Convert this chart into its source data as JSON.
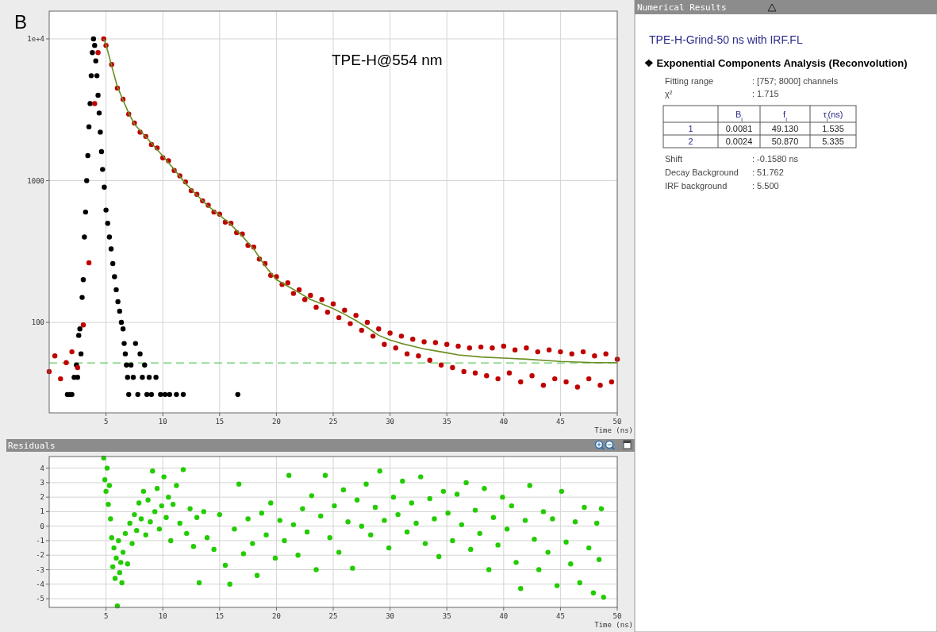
{
  "chart_data": [
    {
      "type": "scatter",
      "annotations": [
        "B",
        "TPE-H@554 nm"
      ],
      "xlabel": "Time (ns)",
      "xlim": [
        0,
        50
      ],
      "xticks": [
        5,
        10,
        15,
        20,
        25,
        30,
        35,
        40,
        45,
        50
      ],
      "ylim": [
        23,
        15700
      ],
      "yticks": [
        100,
        1000,
        {
          "value": 10000,
          "label": "1e+4"
        }
      ],
      "log": true,
      "grid": true,
      "marker": "circle",
      "ref_lines": [
        {
          "axis": "y",
          "value": 51.762,
          "color": "#66cc66",
          "line_style": "dashed"
        }
      ],
      "series": [
        {
          "type": "scatter",
          "color": "#000000",
          "x": [
            1.6,
            1.8,
            2.0,
            2.2,
            2.4,
            2.5,
            2.6,
            2.7,
            2.8,
            2.9,
            3.0,
            3.1,
            3.2,
            3.3,
            3.4,
            3.5,
            3.6,
            3.7,
            3.8,
            3.9,
            4.0,
            4.1,
            4.2,
            4.3,
            4.4,
            4.5,
            4.6,
            4.7,
            4.85,
            5.0,
            5.15,
            5.3,
            5.45,
            5.6,
            5.75,
            5.9,
            6.05,
            6.2,
            6.35,
            6.5,
            6.6,
            6.7,
            6.8,
            6.9,
            7.0,
            7.2,
            7.4,
            7.6,
            7.8,
            8.0,
            8.2,
            8.4,
            8.6,
            8.8,
            9.0,
            9.4,
            9.8,
            10.2,
            10.6,
            11.2,
            11.8,
            16.6
          ],
          "values": [
            31,
            31,
            31,
            41,
            50,
            41,
            81,
            90,
            60,
            150,
            200,
            400,
            600,
            1000,
            1500,
            2400,
            3500,
            5500,
            8000,
            10000,
            9000,
            7000,
            5500,
            4000,
            3000,
            2200,
            1600,
            1200,
            900,
            620,
            500,
            400,
            330,
            260,
            210,
            170,
            140,
            120,
            100,
            90,
            71,
            60,
            50,
            41,
            31,
            50,
            41,
            71,
            31,
            60,
            41,
            50,
            31,
            41,
            31,
            41,
            31,
            31,
            31,
            31,
            31,
            31
          ]
        },
        {
          "type": "scatter",
          "color": "#c00000",
          "x": [
            0,
            0.5,
            1,
            1.5,
            2,
            2.5,
            3,
            3.5,
            4,
            4.3,
            4.8,
            5,
            5.5,
            6,
            6.5,
            7,
            7.5,
            8,
            8.5,
            9,
            9.5,
            10,
            10.5,
            11,
            11.5,
            12,
            12.5,
            13,
            13.5,
            14,
            14.5,
            15,
            15.5,
            16,
            16.5,
            17,
            17.5,
            18,
            18.5,
            19,
            19.5,
            20,
            20.5,
            21,
            21.5,
            22,
            22.5,
            23,
            23.5,
            24,
            24.5,
            25,
            25.5,
            26,
            26.5,
            27,
            27.5,
            28,
            28.5,
            29,
            29.5,
            30,
            30.5,
            31,
            31.5,
            32,
            32.5,
            33,
            33.5,
            34,
            34.5,
            35,
            35.5,
            36,
            36.5,
            37,
            37.5,
            38,
            38.5,
            39,
            39.5,
            40,
            40.5,
            41,
            41.5,
            42,
            42.5,
            43,
            43.5,
            44,
            44.5,
            45,
            45.5,
            46,
            46.5,
            47,
            47.5,
            48,
            48.5,
            49,
            49.5,
            50
          ],
          "values": [
            45,
            58,
            40,
            52,
            62,
            48,
            96,
            263,
            3500,
            8000,
            10000,
            9000,
            6600,
            4500,
            3750,
            2950,
            2550,
            2200,
            2050,
            1800,
            1700,
            1450,
            1380,
            1180,
            1080,
            980,
            850,
            800,
            720,
            670,
            600,
            580,
            510,
            500,
            430,
            420,
            350,
            340,
            280,
            260,
            215,
            210,
            185,
            190,
            160,
            170,
            145,
            155,
            128,
            145,
            118,
            135,
            108,
            122,
            98,
            112,
            88,
            100,
            80,
            90,
            70,
            84,
            66,
            80,
            60,
            76,
            58,
            73,
            54,
            72,
            50,
            70,
            48,
            68,
            45,
            66,
            44,
            67,
            42,
            66,
            40,
            68,
            44,
            64,
            38,
            66,
            42,
            62,
            36,
            64,
            40,
            62,
            38,
            60,
            35,
            62,
            40,
            58,
            36,
            60,
            38,
            55
          ]
        },
        {
          "type": "line",
          "marker": "none",
          "color": "#6b8e23",
          "x": [
            4.8,
            5,
            5.5,
            6,
            6.5,
            7,
            7.5,
            8,
            9,
            10,
            11,
            12,
            13,
            14,
            15,
            16,
            17,
            18,
            19,
            20,
            21,
            22,
            23,
            24,
            25,
            26,
            27,
            28,
            29,
            30,
            31,
            32,
            33,
            34,
            35,
            36,
            38,
            40,
            42,
            45,
            48,
            50
          ],
          "values": [
            10000,
            9100,
            6450,
            4600,
            3700,
            3000,
            2500,
            2260,
            1840,
            1490,
            1200,
            955,
            790,
            660,
            570,
            490,
            405,
            330,
            250,
            200,
            180,
            162,
            145,
            135,
            125,
            114,
            103,
            92,
            81,
            75,
            71,
            68,
            65,
            63,
            61,
            59,
            57,
            56,
            55,
            53,
            52,
            52
          ]
        }
      ]
    },
    {
      "type": "scatter",
      "title": "Residuals",
      "xlabel": "Time (ns)",
      "xlim": [
        0,
        50
      ],
      "xticks": [
        5,
        10,
        15,
        20,
        25,
        30,
        35,
        40,
        45,
        50
      ],
      "ylim": [
        -5.6,
        4.8
      ],
      "yticks": [
        -5,
        -4,
        -3,
        -2,
        -1,
        0,
        1,
        2,
        3,
        4
      ],
      "grid": true,
      "marker": "circle",
      "series": [
        {
          "color": "#22cc00",
          "x": [
            4.8,
            4.9,
            5.0,
            5.1,
            5.2,
            5.3,
            5.4,
            5.5,
            5.6,
            5.7,
            5.8,
            5.9,
            6.0,
            6.1,
            6.2,
            6.3,
            6.4,
            6.5,
            6.7,
            6.9,
            7.1,
            7.3,
            7.5,
            7.7,
            7.9,
            8.1,
            8.3,
            8.5,
            8.7,
            8.9,
            9.1,
            9.3,
            9.5,
            9.7,
            9.9,
            10.1,
            10.3,
            10.5,
            10.7,
            10.9,
            11.2,
            11.5,
            11.8,
            12.1,
            12.4,
            12.7,
            13.0,
            13.2,
            13.6,
            13.9,
            14.5,
            15.0,
            15.5,
            15.9,
            16.3,
            16.7,
            17.1,
            17.5,
            17.9,
            18.3,
            18.7,
            19.1,
            19.5,
            19.9,
            20.3,
            20.7,
            21.1,
            21.5,
            21.9,
            22.3,
            22.7,
            23.1,
            23.5,
            23.9,
            24.3,
            24.7,
            25.1,
            25.5,
            25.9,
            26.3,
            26.7,
            27.1,
            27.5,
            27.9,
            28.3,
            28.7,
            29.1,
            29.5,
            29.9,
            30.3,
            30.7,
            31.1,
            31.5,
            31.9,
            32.3,
            32.7,
            33.1,
            33.5,
            33.9,
            34.3,
            34.7,
            35.1,
            35.5,
            35.9,
            36.3,
            36.7,
            37.1,
            37.5,
            37.9,
            38.3,
            38.7,
            39.1,
            39.5,
            39.9,
            40.3,
            40.7,
            41.1,
            41.5,
            41.9,
            42.3,
            42.7,
            43.1,
            43.5,
            43.9,
            44.3,
            44.7,
            45.1,
            45.5,
            45.9,
            46.3,
            46.7,
            47.1,
            47.5,
            47.9,
            48.2,
            48.4,
            48.6,
            48.8
          ],
          "values": [
            4.7,
            3.2,
            2.4,
            4.0,
            1.5,
            2.8,
            0.5,
            -0.8,
            -2.8,
            -1.5,
            -3.6,
            -2.2,
            -5.5,
            -1.0,
            -3.2,
            -2.5,
            -3.9,
            -1.8,
            -0.5,
            -2.6,
            0.2,
            -1.2,
            0.8,
            -0.3,
            1.6,
            0.5,
            2.4,
            -0.6,
            1.8,
            0.3,
            3.8,
            1.0,
            2.6,
            -0.2,
            1.4,
            3.4,
            0.6,
            2.0,
            -1.0,
            1.5,
            2.8,
            0.2,
            3.9,
            -0.5,
            1.2,
            -1.4,
            0.6,
            -3.9,
            1.0,
            -0.8,
            -1.6,
            0.8,
            -2.7,
            -4.0,
            -0.2,
            2.9,
            -1.9,
            0.5,
            -1.2,
            -3.4,
            0.9,
            -0.6,
            1.6,
            -2.2,
            0.4,
            -1.0,
            3.5,
            0.1,
            -2.0,
            1.2,
            -0.4,
            2.1,
            -3.0,
            0.7,
            3.5,
            -0.8,
            1.4,
            -1.8,
            2.5,
            0.3,
            -2.9,
            1.8,
            0.0,
            2.9,
            -0.6,
            1.3,
            3.8,
            0.4,
            -1.5,
            2.0,
            0.8,
            3.1,
            -0.4,
            1.6,
            0.2,
            3.4,
            -1.2,
            1.9,
            0.5,
            -2.1,
            2.4,
            0.9,
            -1.0,
            2.2,
            0.1,
            3.0,
            -1.6,
            1.1,
            -0.5,
            2.6,
            -3.0,
            0.6,
            -1.3,
            2.0,
            -0.2,
            1.4,
            -2.5,
            -4.3,
            0.4,
            2.8,
            -0.9,
            -3.0,
            1.0,
            -1.8,
            0.5,
            -4.1,
            2.4,
            -1.1,
            -2.6,
            0.3,
            -3.9,
            1.3,
            -1.5,
            -4.6,
            0.2,
            -2.3,
            1.2,
            -4.9
          ]
        }
      ]
    },
    {
      "type": "other",
      "title": "Numerical Results",
      "subtitle": "TPE-H-Grind-50 ns with IRF.FL",
      "annotations": [
        "❖ Exponential Components Analysis (Reconvolution)",
        "Fitting range",
        ": [757; 8000] channels",
        "χ²",
        ": 1.715",
        "B$_{i}$",
        "f$_{i}$",
        "τ$_{i}$(ns)",
        "1",
        "0.0081",
        "49.130",
        "1.535",
        "2",
        "0.0024",
        "50.870",
        "5.335",
        "Shift",
        ": -0.1580 ns",
        "Decay Background",
        ": 51.762",
        "IRF background",
        ": 5.500"
      ]
    }
  ]
}
